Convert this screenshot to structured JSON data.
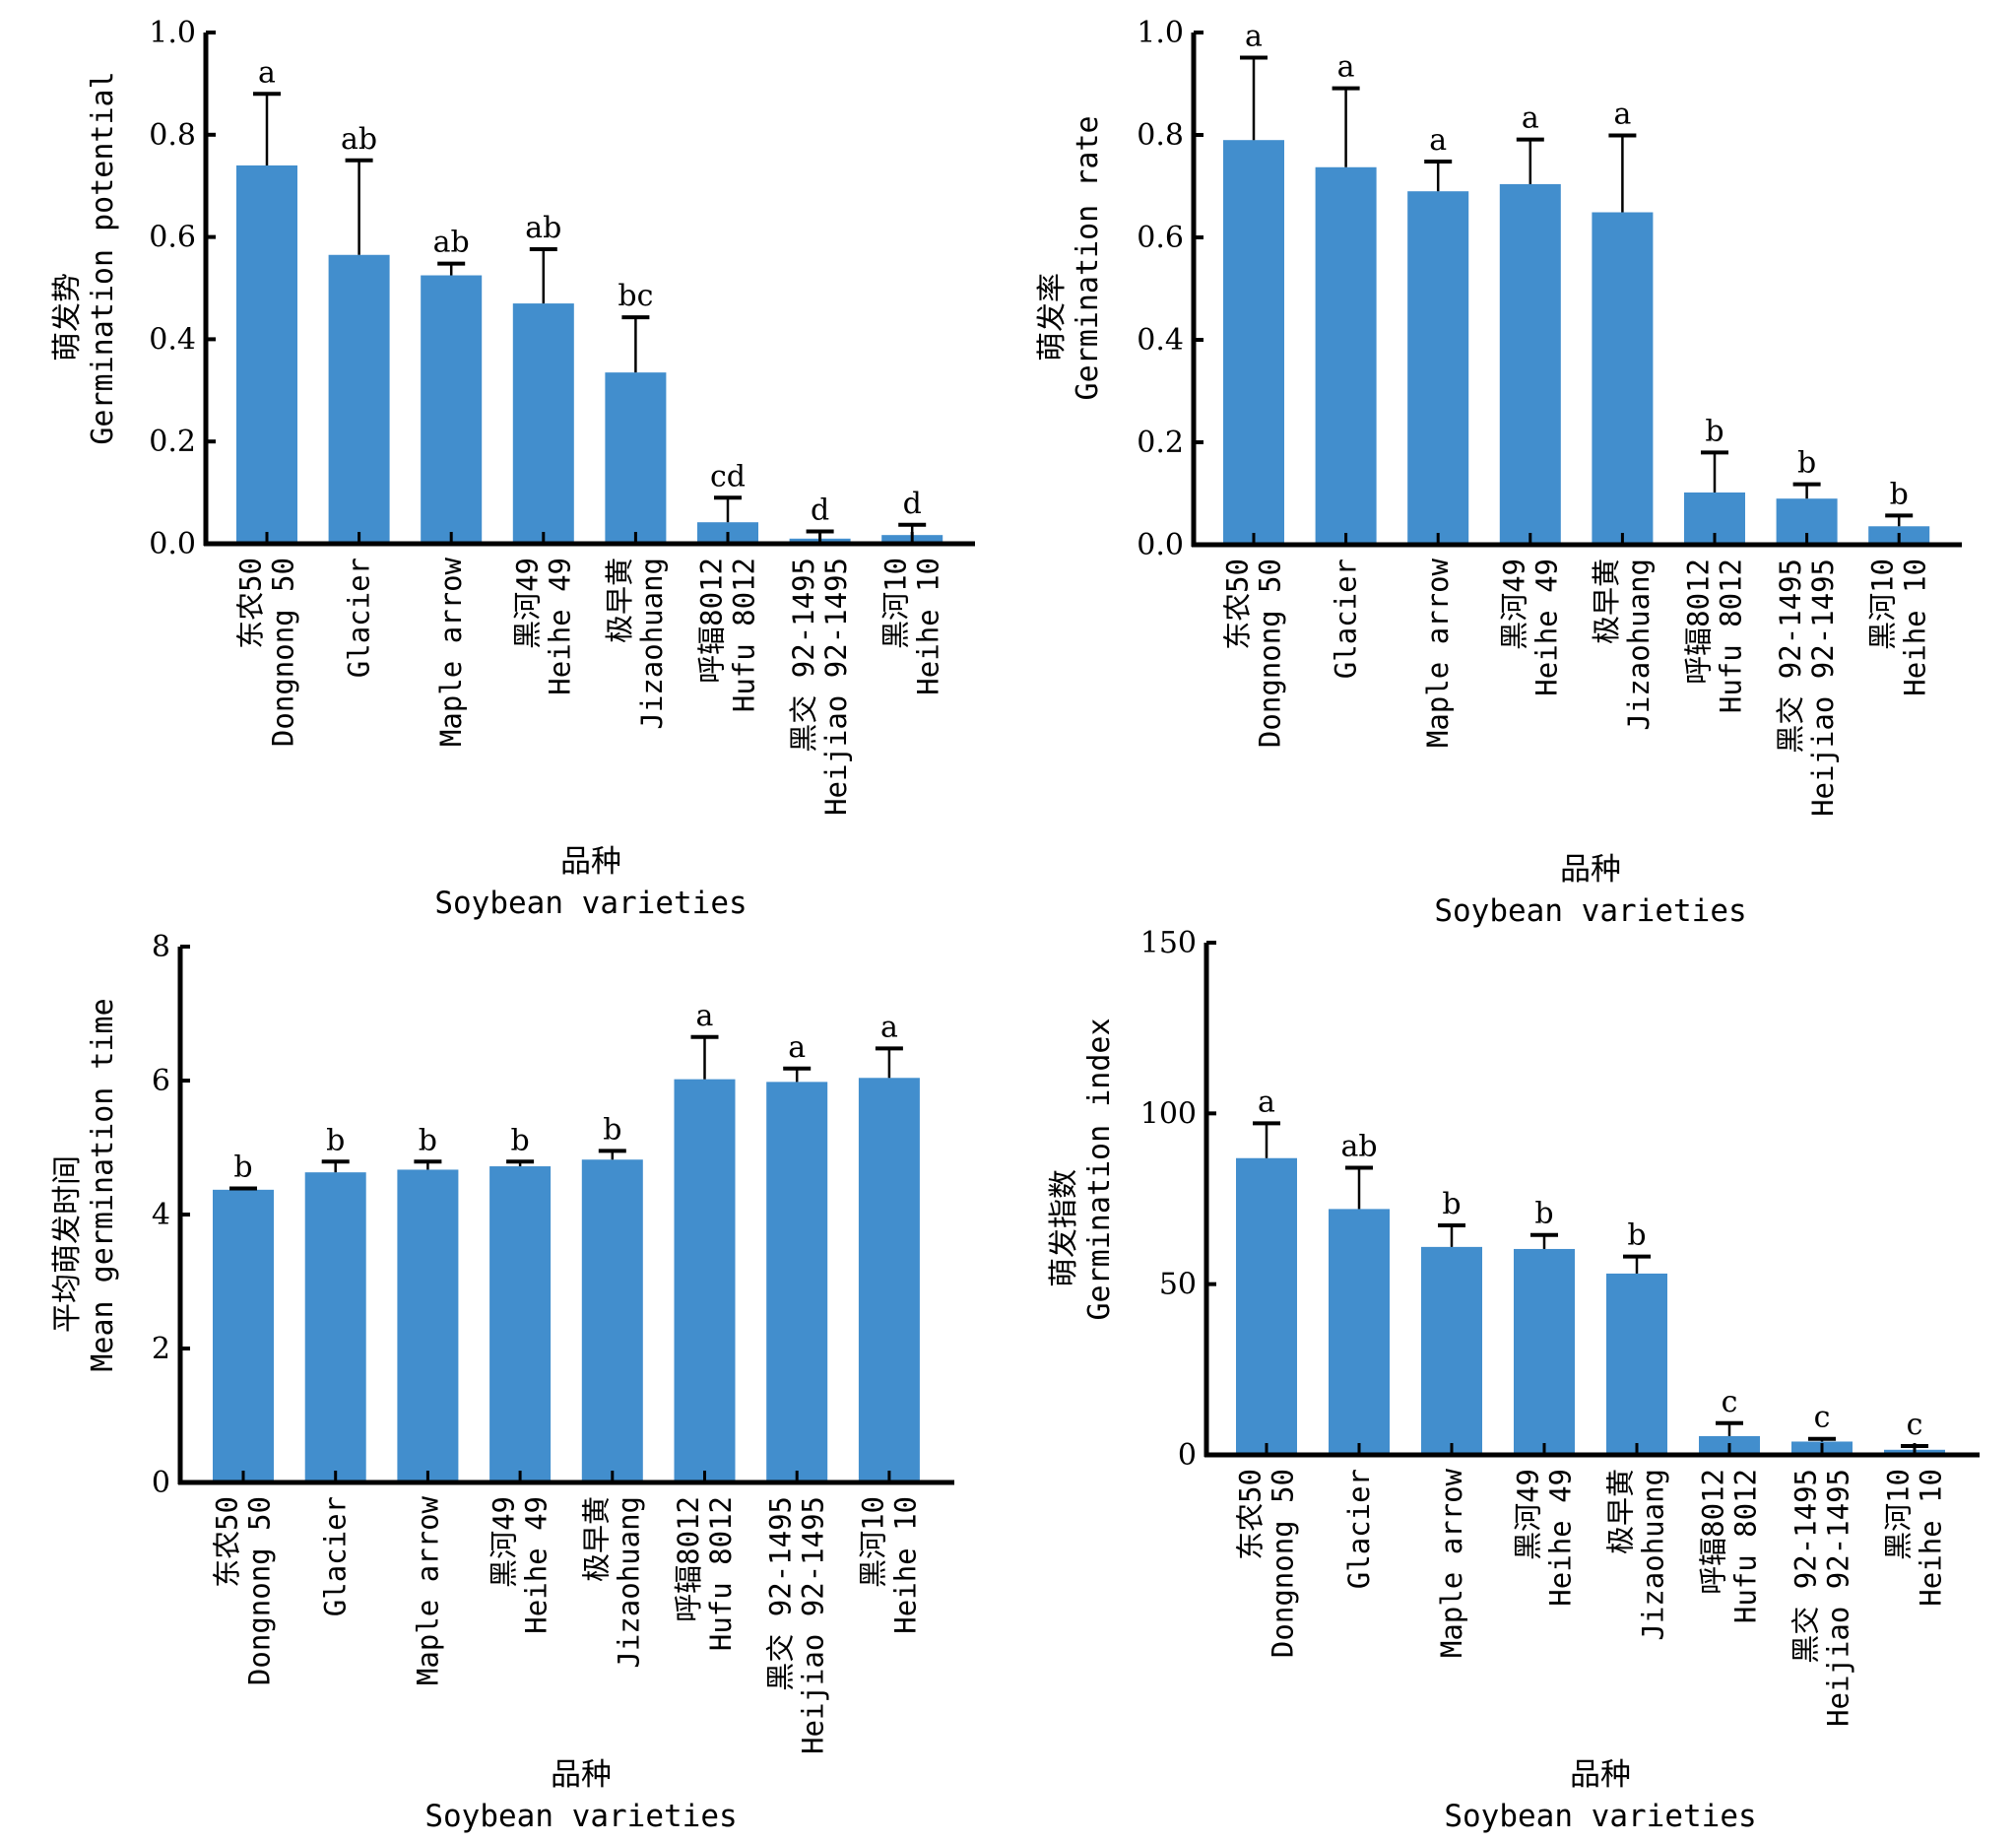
{
  "bar_color": "#428ecd",
  "chart_data": [
    {
      "type": "bar",
      "panel": "top-left",
      "title": "",
      "ylabel_cn": "萌发势",
      "ylabel_en": "Germination potential",
      "xlabel_cn": "品种",
      "xlabel_en": "Soybean varieties",
      "ylim": [
        0,
        1.0
      ],
      "yticks": [
        0.0,
        0.2,
        0.4,
        0.6,
        0.8,
        1.0
      ],
      "ytick_labels": [
        "0.0",
        "0.2",
        "0.4",
        "0.6",
        "0.8",
        "1.0"
      ],
      "categories": [
        {
          "cn": "东农50",
          "en": "Dongnong 50"
        },
        {
          "cn": "",
          "en": "Glacier"
        },
        {
          "cn": "",
          "en": "Maple arrow"
        },
        {
          "cn": "黑河49",
          "en": "Heihe 49"
        },
        {
          "cn": "极早黄",
          "en": "Jizaohuang"
        },
        {
          "cn": "呼辐8012",
          "en": "Hufu 8012"
        },
        {
          "cn": "黑交 92-1495",
          "en": "Heijiao 92-1495"
        },
        {
          "cn": "黑河10",
          "en": "Heihe 10"
        }
      ],
      "values": [
        0.74,
        0.565,
        0.525,
        0.47,
        0.335,
        0.042,
        0.01,
        0.017
      ],
      "error_upper": [
        0.88,
        0.75,
        0.548,
        0.576,
        0.443,
        0.09,
        0.024,
        0.037
      ],
      "significance": [
        "a",
        "ab",
        "ab",
        "ab",
        "bc",
        "cd",
        "d",
        "d"
      ]
    },
    {
      "type": "bar",
      "panel": "top-right",
      "title": "",
      "ylabel_cn": "萌发率",
      "ylabel_en": "Germination rate",
      "xlabel_cn": "品种",
      "xlabel_en": "Soybean varieties",
      "ylim": [
        0,
        1.0
      ],
      "yticks": [
        0.0,
        0.2,
        0.4,
        0.6,
        0.8,
        1.0
      ],
      "ytick_labels": [
        "0.0",
        "0.2",
        "0.4",
        "0.6",
        "0.8",
        "1.0"
      ],
      "categories": [
        {
          "cn": "东农50",
          "en": "Dongnong 50"
        },
        {
          "cn": "",
          "en": "Glacier"
        },
        {
          "cn": "",
          "en": "Maple arrow"
        },
        {
          "cn": "黑河49",
          "en": "Heihe 49"
        },
        {
          "cn": "极早黄",
          "en": "Jizaohuang"
        },
        {
          "cn": "呼辐8012",
          "en": "Hufu 8012"
        },
        {
          "cn": "黑交 92-1495",
          "en": "Heijiao 92-1495"
        },
        {
          "cn": "黑河10",
          "en": "Heihe 10"
        }
      ],
      "values": [
        0.79,
        0.737,
        0.69,
        0.704,
        0.649,
        0.102,
        0.09,
        0.036
      ],
      "error_upper": [
        0.951,
        0.891,
        0.748,
        0.791,
        0.799,
        0.18,
        0.118,
        0.057
      ],
      "significance": [
        "a",
        "a",
        "a",
        "a",
        "a",
        "b",
        "b",
        "b"
      ]
    },
    {
      "type": "bar",
      "panel": "bottom-left",
      "title": "",
      "ylabel_cn": "平均萌发时间",
      "ylabel_en": "Mean germination time",
      "xlabel_cn": "品种",
      "xlabel_en": "Soybean varieties",
      "ylim": [
        0,
        8
      ],
      "yticks": [
        0,
        2,
        4,
        6,
        8
      ],
      "ytick_labels": [
        "0",
        "2",
        "4",
        "6",
        "8"
      ],
      "categories": [
        {
          "cn": "东农50",
          "en": "Dongnong 50"
        },
        {
          "cn": "",
          "en": "Glacier"
        },
        {
          "cn": "",
          "en": "Maple arrow"
        },
        {
          "cn": "黑河49",
          "en": "Heihe 49"
        },
        {
          "cn": "极早黄",
          "en": "Jizaohuang"
        },
        {
          "cn": "呼辐8012",
          "en": "Hufu 8012"
        },
        {
          "cn": "黑交 92-1495",
          "en": "Heijiao 92-1495"
        },
        {
          "cn": "黑河10",
          "en": "Heihe 10"
        }
      ],
      "values": [
        4.37,
        4.63,
        4.67,
        4.72,
        4.82,
        6.02,
        5.98,
        6.04
      ],
      "error_upper": [
        4.39,
        4.79,
        4.79,
        4.79,
        4.95,
        6.65,
        6.18,
        6.48
      ],
      "significance": [
        "b",
        "b",
        "b",
        "b",
        "b",
        "a",
        "a",
        "a"
      ]
    },
    {
      "type": "bar",
      "panel": "bottom-right",
      "title": "",
      "ylabel_cn": "萌发指数",
      "ylabel_en": "Germination index",
      "xlabel_cn": "品种",
      "xlabel_en": "Soybean varieties",
      "ylim": [
        0,
        150
      ],
      "yticks": [
        0,
        50,
        100,
        150
      ],
      "ytick_labels": [
        "0",
        "50",
        "100",
        "150"
      ],
      "categories": [
        {
          "cn": "东农50",
          "en": "Dongnong 50"
        },
        {
          "cn": "",
          "en": "Glacier"
        },
        {
          "cn": "",
          "en": "Maple arrow"
        },
        {
          "cn": "黑河49",
          "en": "Heihe 49"
        },
        {
          "cn": "极早黄",
          "en": "Jizaohuang"
        },
        {
          "cn": "呼辐8012",
          "en": "Hufu 8012"
        },
        {
          "cn": "黑交 92-1495",
          "en": "Heijiao 92-1495"
        },
        {
          "cn": "黑河10",
          "en": "Heihe 10"
        }
      ],
      "values": [
        86.9,
        72.0,
        60.9,
        60.3,
        53.1,
        5.5,
        3.9,
        1.5
      ],
      "error_upper": [
        97.1,
        84.1,
        67.2,
        64.4,
        58.1,
        9.3,
        4.7,
        2.6
      ],
      "significance": [
        "a",
        "ab",
        "b",
        "b",
        "b",
        "c",
        "c",
        "c"
      ]
    }
  ]
}
